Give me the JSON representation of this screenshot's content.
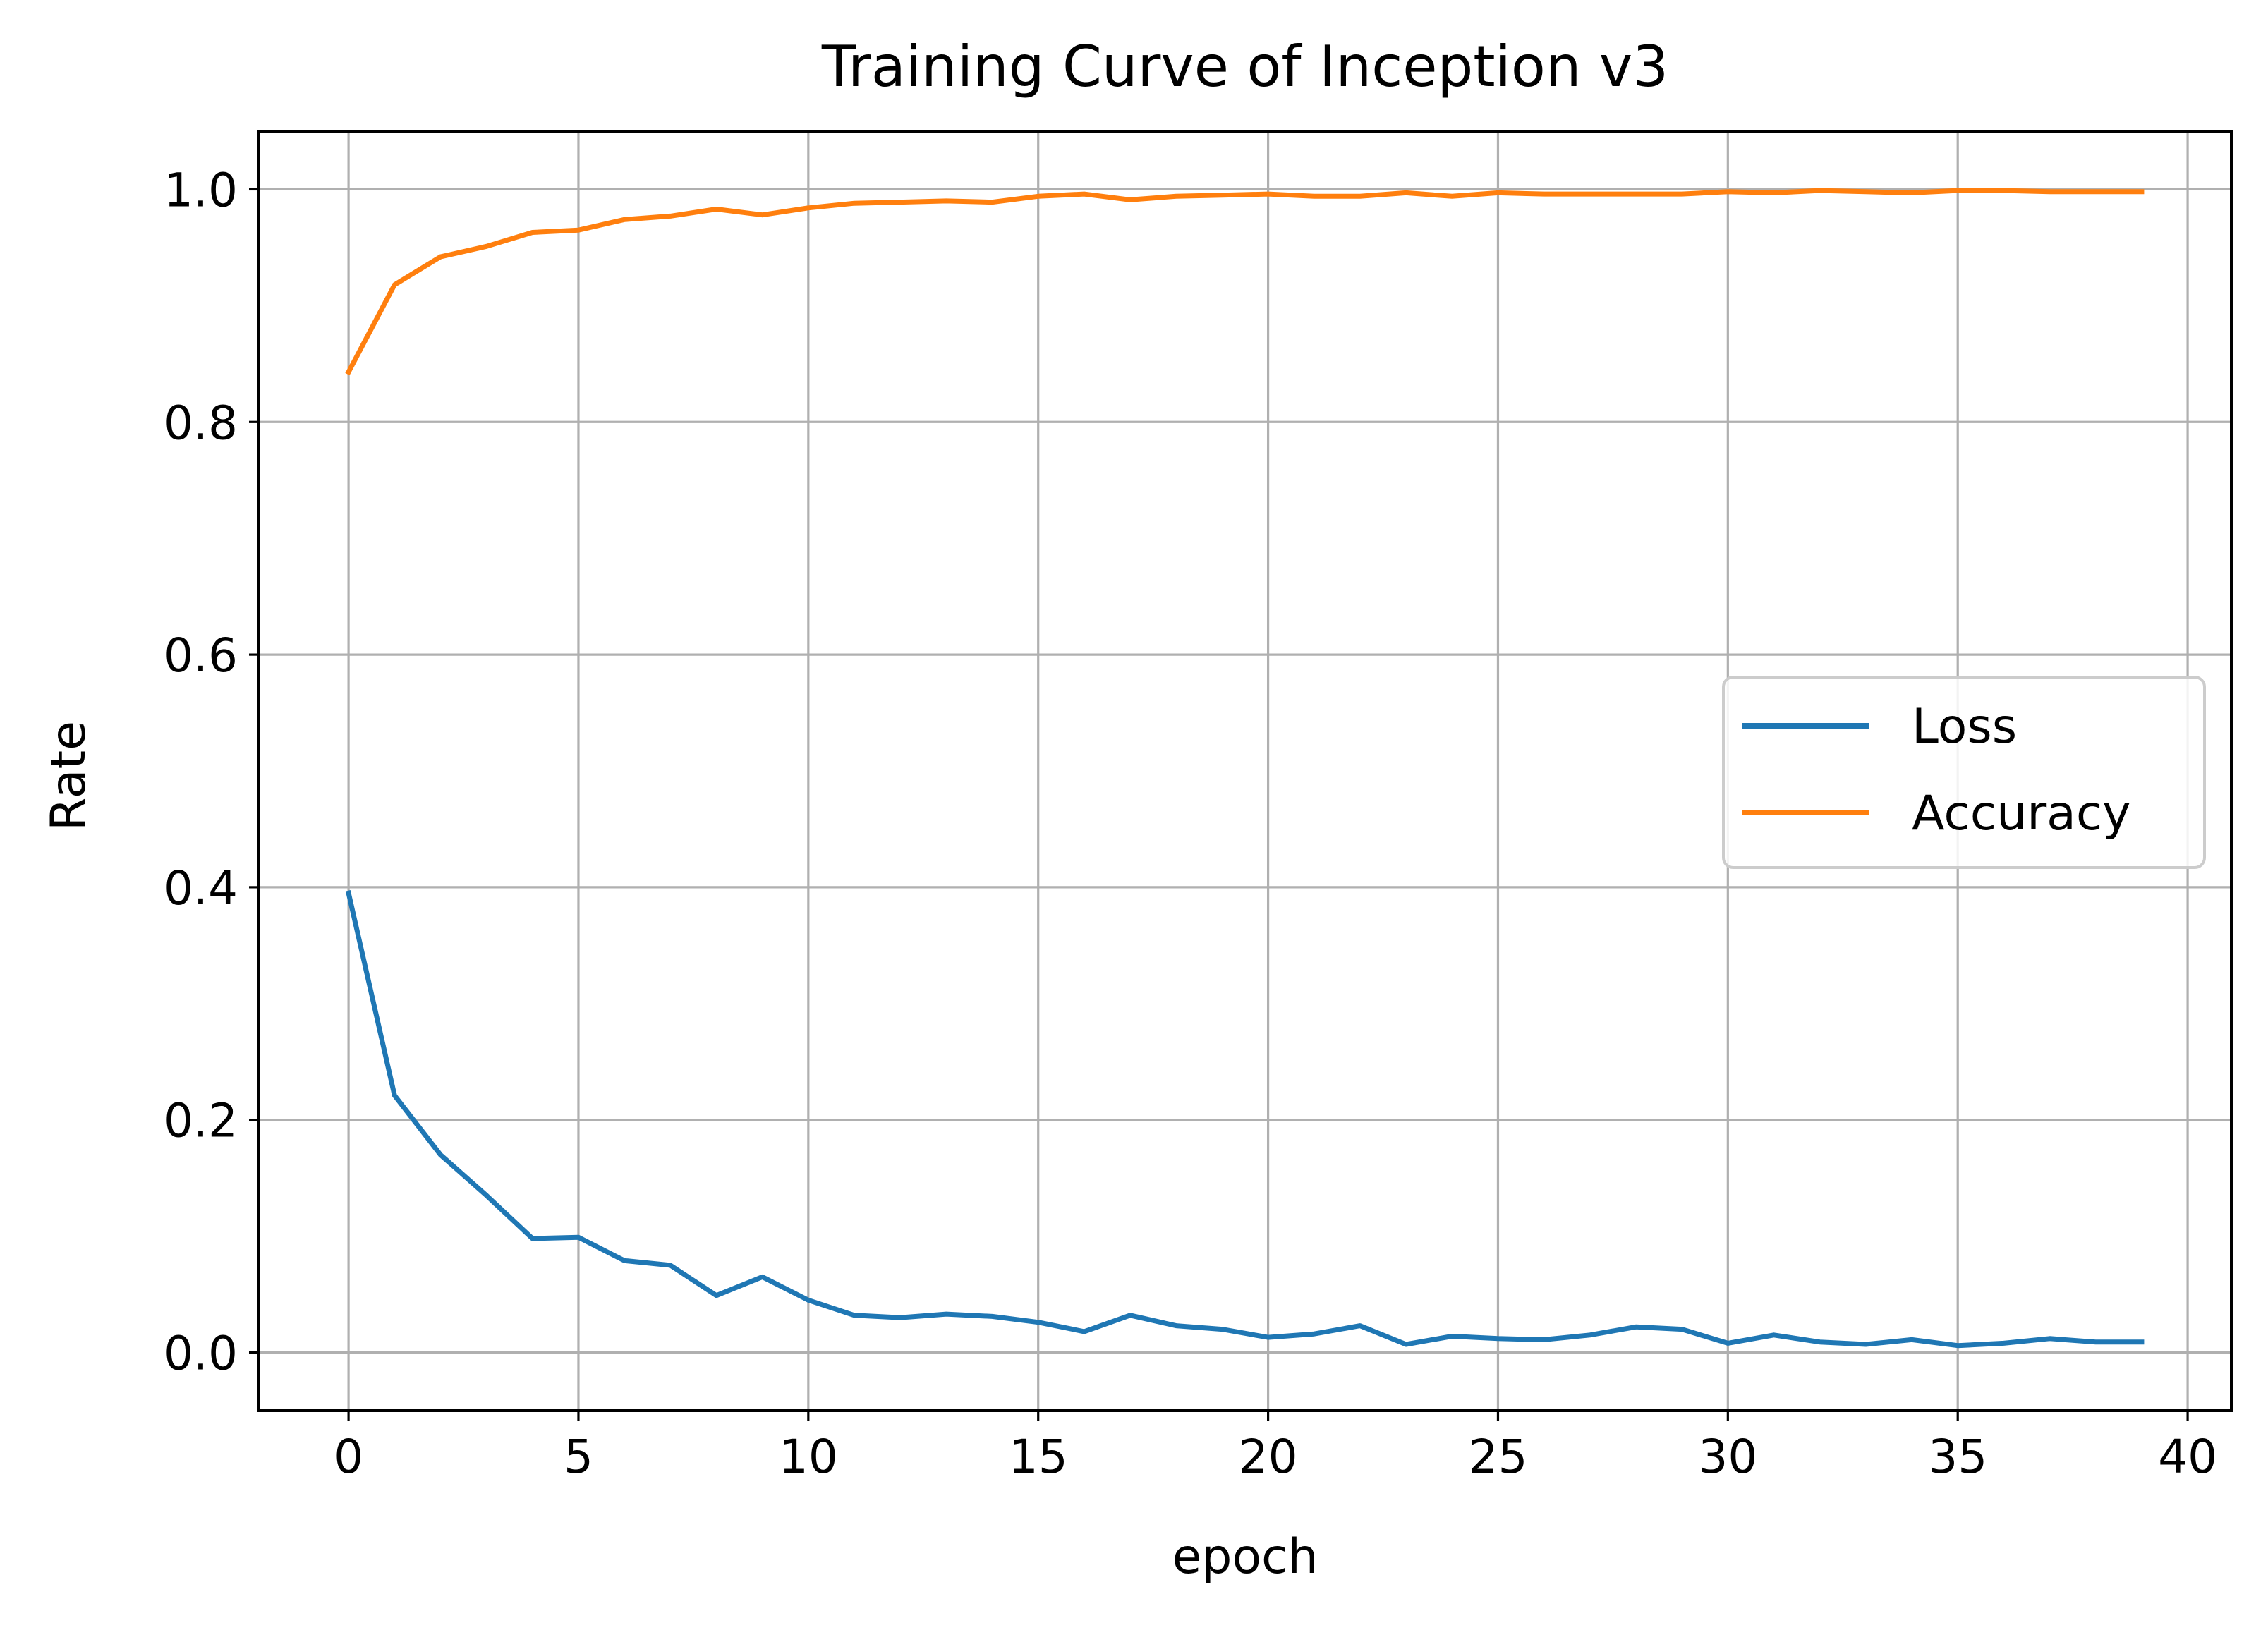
{
  "chart_data": {
    "type": "line",
    "title": "Training Curve of Inception v3",
    "xlabel": "epoch",
    "ylabel": "Rate",
    "xlim": [
      -1.95,
      40.95
    ],
    "ylim": [
      -0.05,
      1.05
    ],
    "grid": true,
    "legend_position": "center-right",
    "x_ticks": [
      0,
      5,
      10,
      15,
      20,
      25,
      30,
      35,
      40
    ],
    "x_tick_labels": [
      "0",
      "5",
      "10",
      "15",
      "20",
      "25",
      "30",
      "35",
      "40"
    ],
    "y_ticks": [
      0.0,
      0.2,
      0.4,
      0.6,
      0.8,
      1.0
    ],
    "y_tick_labels": [
      "0.0",
      "0.2",
      "0.4",
      "0.6",
      "0.8",
      "1.0"
    ],
    "x": [
      0,
      1,
      2,
      3,
      4,
      5,
      6,
      7,
      8,
      9,
      10,
      11,
      12,
      13,
      14,
      15,
      16,
      17,
      18,
      19,
      20,
      21,
      22,
      23,
      24,
      25,
      26,
      27,
      28,
      29,
      30,
      31,
      32,
      33,
      34,
      35,
      36,
      37,
      38,
      39
    ],
    "series": [
      {
        "name": "Loss",
        "color": "#1f77b4",
        "values": [
          0.395,
          0.221,
          0.17,
          0.135,
          0.098,
          0.099,
          0.079,
          0.075,
          0.049,
          0.065,
          0.045,
          0.032,
          0.03,
          0.033,
          0.031,
          0.026,
          0.018,
          0.032,
          0.023,
          0.02,
          0.013,
          0.016,
          0.023,
          0.007,
          0.014,
          0.012,
          0.011,
          0.015,
          0.022,
          0.02,
          0.008,
          0.015,
          0.009,
          0.007,
          0.011,
          0.006,
          0.008,
          0.012,
          0.009,
          0.009
        ]
      },
      {
        "name": "Accuracy",
        "color": "#ff7f0e",
        "values": [
          0.843,
          0.918,
          0.942,
          0.951,
          0.963,
          0.965,
          0.974,
          0.977,
          0.983,
          0.978,
          0.984,
          0.988,
          0.989,
          0.99,
          0.989,
          0.994,
          0.996,
          0.991,
          0.994,
          0.995,
          0.996,
          0.994,
          0.994,
          0.997,
          0.994,
          0.997,
          0.996,
          0.996,
          0.996,
          0.996,
          0.998,
          0.997,
          0.999,
          0.998,
          0.997,
          0.999,
          0.999,
          0.998,
          0.998,
          0.998
        ]
      }
    ]
  }
}
